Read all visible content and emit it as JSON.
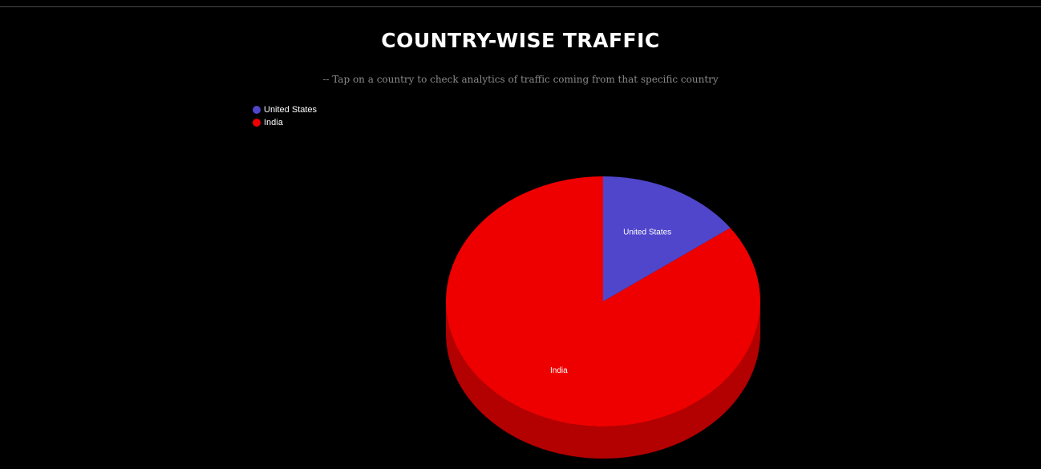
{
  "header": {
    "title": "COUNTRY-WISE TRAFFIC",
    "subtitle": "-- Tap on a country to check analytics of traffic coming from that specific country"
  },
  "chart_data": {
    "type": "pie",
    "style": "3d",
    "legend_position": "top-left",
    "categories": [
      "United States",
      "India"
    ],
    "values": [
      15,
      85
    ],
    "colors": [
      "#5046cc",
      "#ee0000"
    ],
    "side_colors": [
      "#3a33a0",
      "#b30000"
    ]
  }
}
